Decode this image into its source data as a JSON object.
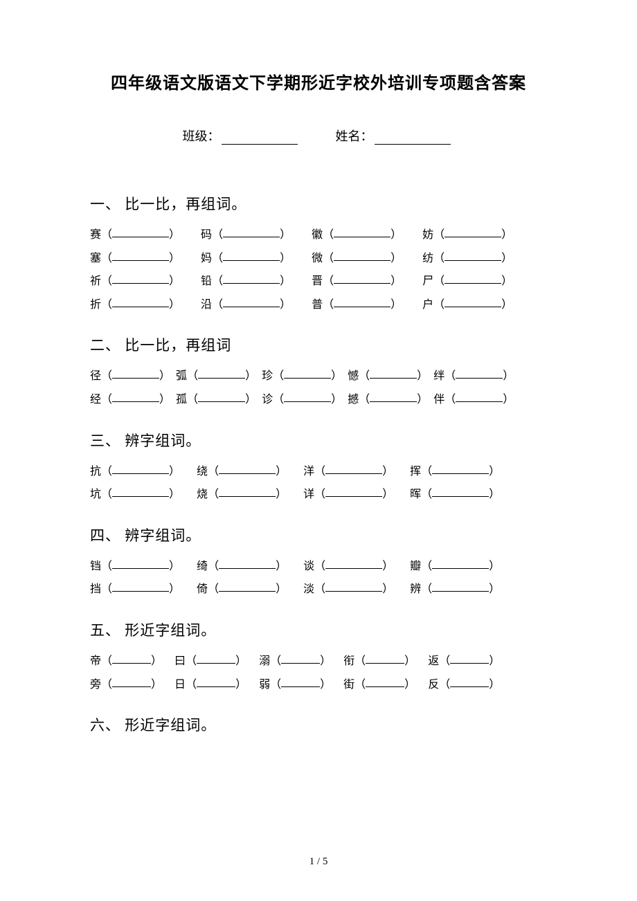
{
  "title": "四年级语文版语文下学期形近字校外培训专项题含答案",
  "meta": {
    "class_label": "班级：",
    "name_label": "姓名："
  },
  "page_num": "1 / 5",
  "sections": [
    {
      "head": "一、 比一比，再组词。",
      "blank_width": 82,
      "gap": 30,
      "rows": [
        [
          "赛",
          "码",
          "徽",
          "妨"
        ],
        [
          "塞",
          "妈",
          "微",
          "纺"
        ],
        [
          "祈",
          "铅",
          "晋",
          "尸"
        ],
        [
          "折",
          "沿",
          "普",
          "户"
        ]
      ]
    },
    {
      "head": "二、 比一比，再组词",
      "blank_width": 68,
      "gap": 8,
      "rows": [
        [
          "径",
          "弧",
          "珍",
          "憾",
          "绊"
        ],
        [
          "经",
          "孤",
          "诊",
          "撼",
          "伴"
        ]
      ]
    },
    {
      "head": "三、 辨字组词。",
      "blank_width": 82,
      "gap": 24,
      "rows": [
        [
          "抗",
          "绕",
          "洋",
          "挥"
        ],
        [
          "坑",
          "烧",
          "详",
          "晖"
        ]
      ]
    },
    {
      "head": "四、 辨字组词。",
      "blank_width": 82,
      "gap": 24,
      "rows": [
        [
          "铛",
          "绮",
          "谈",
          "瓣"
        ],
        [
          "挡",
          "倚",
          "淡",
          "辨"
        ]
      ]
    },
    {
      "head": "五、 形近字组词。",
      "blank_width": 56,
      "gap": 18,
      "rows": [
        [
          "帝",
          "曰",
          "溺",
          "衔",
          "返"
        ],
        [
          "旁",
          "日",
          "弱",
          "街",
          "反"
        ]
      ]
    },
    {
      "head": "六、 形近字组词。",
      "blank_width": 82,
      "gap": 24,
      "rows": []
    }
  ]
}
